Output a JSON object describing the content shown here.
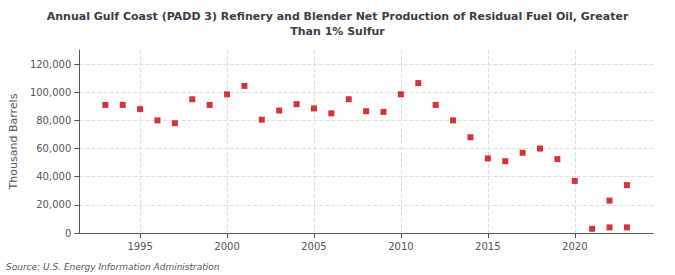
{
  "chart_data": {
    "type": "scatter",
    "title": "Annual Gulf Coast (PADD 3) Refinery and Blender Net Production of Residual Fuel Oil, Greater\nThan 1% Sulfur",
    "ylabel": "Thousand Barrels",
    "source": "Source: U.S. Energy Information Administration",
    "x": [
      1993,
      1994,
      1995,
      1996,
      1997,
      1998,
      1999,
      2000,
      2001,
      2002,
      2003,
      2004,
      2005,
      2006,
      2007,
      2008,
      2009,
      2010,
      2011,
      2012,
      2013,
      2014,
      2015,
      2016,
      2017,
      2018,
      2019,
      2020,
      2021,
      2022,
      2022,
      2023,
      2023
    ],
    "values": [
      91000,
      91000,
      88000,
      80000,
      78000,
      95000,
      91000,
      98500,
      104500,
      80500,
      87000,
      91500,
      88500,
      85000,
      95000,
      86500,
      86000,
      98500,
      106500,
      91000,
      80000,
      68000,
      53000,
      51000,
      57000,
      60000,
      52500,
      37000,
      3000,
      4000,
      23000,
      4000,
      34000
    ],
    "color": "#cc0000",
    "marker": "square",
    "xlim": [
      1991.5,
      2024.5
    ],
    "xticks": [
      1995,
      2000,
      2005,
      2010,
      2015,
      2020
    ],
    "ylim": [
      0,
      130000
    ],
    "yticks": [
      0,
      {
        "value": 20000,
        "label": "20,000"
      },
      {
        "value": 40000,
        "label": "40,000"
      },
      {
        "value": 60000,
        "label": "60,000"
      },
      {
        "value": 80000,
        "label": "80,000"
      },
      {
        "value": 100000,
        "label": "100,000"
      },
      {
        "value": 120000,
        "label": "120,000"
      }
    ],
    "grid": true
  }
}
